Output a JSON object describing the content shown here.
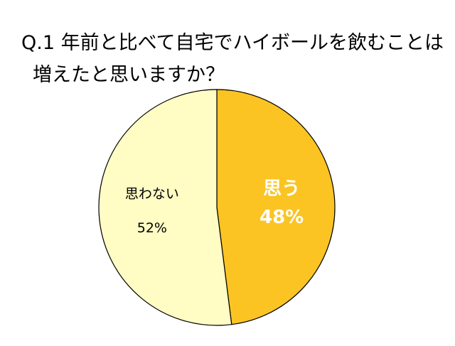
{
  "chart_data": {
    "type": "pie",
    "title_lines": [
      "Q.1 年前と比べて自宅でハイボールを飲むことは",
      "増えたと思いますか？"
    ],
    "slices": [
      {
        "label": "思う",
        "value": 48,
        "value_label": "48%",
        "color": "#FBC423",
        "text_color": "#FFFFFF",
        "bold": true
      },
      {
        "label": "思わない",
        "value": 52,
        "value_label": "52%",
        "color": "#FFFCC4",
        "text_color": "#000000",
        "bold": false
      }
    ],
    "start": "top",
    "direction": "clockwise",
    "outline_color": "#000000"
  }
}
